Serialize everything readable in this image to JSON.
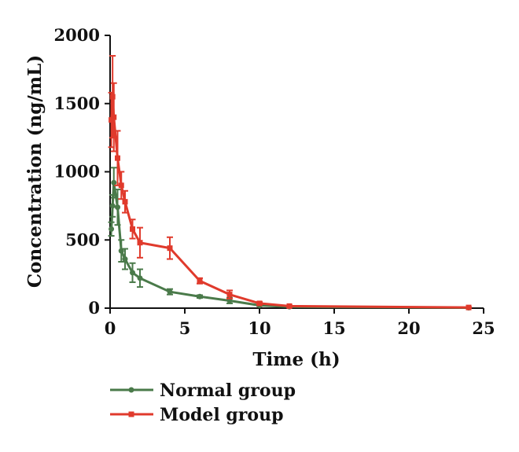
{
  "chart_data": {
    "type": "line",
    "xlabel": "Time (h)",
    "ylabel": "Concentration (ng/mL)",
    "xlim": [
      0,
      25
    ],
    "ylim": [
      0,
      2000
    ],
    "xticks": [
      0,
      5,
      10,
      15,
      20,
      25
    ],
    "yticks": [
      0,
      500,
      1000,
      1500,
      2000
    ],
    "grid": false,
    "legend_position": "bottom-left",
    "series": [
      {
        "name": "Normal group",
        "color": "#4a7a4a",
        "marker": "circle",
        "points": [
          {
            "x": 0.083,
            "y": 580,
            "err": 50
          },
          {
            "x": 0.167,
            "y": 750,
            "err": 80
          },
          {
            "x": 0.25,
            "y": 920,
            "err": 110
          },
          {
            "x": 0.5,
            "y": 740,
            "err": 130
          },
          {
            "x": 0.75,
            "y": 420,
            "err": 80
          },
          {
            "x": 1,
            "y": 360,
            "err": 75
          },
          {
            "x": 1.5,
            "y": 260,
            "err": 70
          },
          {
            "x": 2,
            "y": 220,
            "err": 65
          },
          {
            "x": 4,
            "y": 120,
            "err": 20
          },
          {
            "x": 6,
            "y": 85,
            "err": 10
          },
          {
            "x": 8,
            "y": 55,
            "err": 20
          },
          {
            "x": 10,
            "y": 20,
            "err": 5
          },
          {
            "x": 12,
            "y": 10,
            "err": 3
          },
          {
            "x": 24,
            "y": 3,
            "err": 1
          }
        ]
      },
      {
        "name": "Model group",
        "color": "#e03a2c",
        "marker": "square",
        "points": [
          {
            "x": 0.083,
            "y": 1380,
            "err": 200
          },
          {
            "x": 0.167,
            "y": 1550,
            "err": 300
          },
          {
            "x": 0.25,
            "y": 1400,
            "err": 250
          },
          {
            "x": 0.5,
            "y": 1100,
            "err": 200
          },
          {
            "x": 0.75,
            "y": 900,
            "err": 100
          },
          {
            "x": 1,
            "y": 780,
            "err": 80
          },
          {
            "x": 1.5,
            "y": 580,
            "err": 70
          },
          {
            "x": 2,
            "y": 480,
            "err": 110
          },
          {
            "x": 4,
            "y": 440,
            "err": 80
          },
          {
            "x": 6,
            "y": 200,
            "err": 20
          },
          {
            "x": 8,
            "y": 100,
            "err": 30
          },
          {
            "x": 10,
            "y": 35,
            "err": 10
          },
          {
            "x": 12,
            "y": 15,
            "err": 5
          },
          {
            "x": 24,
            "y": 5,
            "err": 2
          }
        ]
      }
    ]
  }
}
